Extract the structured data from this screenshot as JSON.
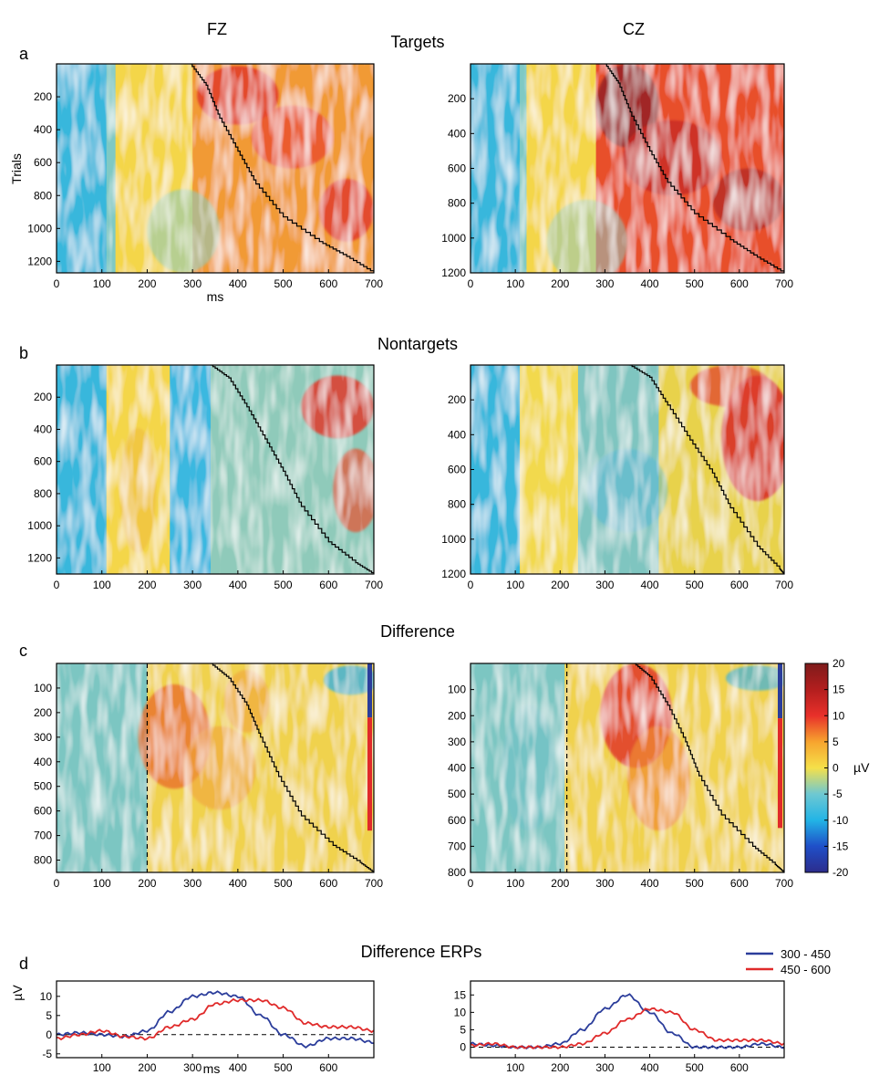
{
  "columns": [
    "FZ",
    "CZ"
  ],
  "colorbar": {
    "ticks": [
      20,
      15,
      10,
      5,
      0,
      -5,
      -10,
      -15,
      -20
    ],
    "unit": "µV",
    "colors": [
      "#2c2c8c",
      "#1f4fc8",
      "#22b4e6",
      "#6ec8d2",
      "#f5e04a",
      "#f7a42e",
      "#e8302a",
      "#b31e1e",
      "#7e1b1b"
    ]
  },
  "chart_data": [
    {
      "panel": "a",
      "section_title": "Targets",
      "electrode": "FZ",
      "type": "heatmap",
      "xlabel": "ms",
      "ylabel": "Trials",
      "xlim": [
        0,
        700
      ],
      "ylim": [
        0,
        1270
      ],
      "xticks": [
        0,
        100,
        200,
        300,
        400,
        500,
        600,
        700
      ],
      "yticks": [
        200,
        400,
        600,
        800,
        1000,
        1200
      ],
      "rt_curve": [
        [
          295,
          0
        ],
        [
          330,
          130
        ],
        [
          360,
          330
        ],
        [
          400,
          530
        ],
        [
          440,
          730
        ],
        [
          500,
          930
        ],
        [
          580,
          1080
        ],
        [
          640,
          1170
        ],
        [
          700,
          1270
        ]
      ]
    },
    {
      "panel": "a",
      "electrode": "CZ",
      "type": "heatmap",
      "xlim": [
        0,
        700
      ],
      "ylim": [
        0,
        1200
      ],
      "xticks": [
        0,
        100,
        200,
        300,
        400,
        500,
        600,
        700
      ],
      "yticks": [
        200,
        400,
        600,
        800,
        1000,
        1200
      ],
      "rt_curve": [
        [
          300,
          0
        ],
        [
          330,
          110
        ],
        [
          360,
          300
        ],
        [
          400,
          500
        ],
        [
          440,
          680
        ],
        [
          500,
          860
        ],
        [
          580,
          1010
        ],
        [
          640,
          1110
        ],
        [
          700,
          1200
        ]
      ]
    },
    {
      "panel": "b",
      "section_title": "Nontargets",
      "electrode": "FZ",
      "type": "heatmap",
      "xlim": [
        0,
        700
      ],
      "ylim": [
        0,
        1300
      ],
      "xticks": [
        0,
        100,
        200,
        300,
        400,
        500,
        600,
        700
      ],
      "yticks": [
        200,
        400,
        600,
        800,
        1000,
        1200
      ],
      "rt_curve": [
        [
          340,
          0
        ],
        [
          380,
          80
        ],
        [
          420,
          260
        ],
        [
          460,
          460
        ],
        [
          500,
          660
        ],
        [
          540,
          880
        ],
        [
          600,
          1100
        ],
        [
          660,
          1230
        ],
        [
          700,
          1300
        ]
      ]
    },
    {
      "panel": "b",
      "electrode": "CZ",
      "type": "heatmap",
      "xlim": [
        0,
        700
      ],
      "ylim": [
        0,
        1200
      ],
      "xticks": [
        0,
        100,
        200,
        300,
        400,
        500,
        600,
        700
      ],
      "yticks": [
        200,
        400,
        600,
        800,
        1000,
        1200
      ],
      "rt_curve": [
        [
          355,
          0
        ],
        [
          400,
          70
        ],
        [
          440,
          230
        ],
        [
          490,
          430
        ],
        [
          540,
          620
        ],
        [
          580,
          820
        ],
        [
          640,
          1040
        ],
        [
          690,
          1170
        ],
        [
          700,
          1200
        ]
      ]
    },
    {
      "panel": "c",
      "section_title": "Difference",
      "electrode": "FZ",
      "type": "heatmap",
      "xlim": [
        0,
        700
      ],
      "ylim": [
        0,
        850
      ],
      "xticks": [
        0,
        100,
        200,
        300,
        400,
        500,
        600,
        700
      ],
      "yticks": [
        100,
        200,
        300,
        400,
        500,
        600,
        700,
        800
      ],
      "vline": 200,
      "rt_curve": [
        [
          340,
          0
        ],
        [
          380,
          60
        ],
        [
          420,
          170
        ],
        [
          450,
          300
        ],
        [
          490,
          460
        ],
        [
          540,
          620
        ],
        [
          610,
          740
        ],
        [
          670,
          810
        ],
        [
          700,
          850
        ]
      ],
      "bars": [
        {
          "color": "#2b3d9b",
          "from": 0,
          "to": 220
        },
        {
          "color": "#e02a2a",
          "from": 220,
          "to": 680
        }
      ]
    },
    {
      "panel": "c",
      "electrode": "CZ",
      "type": "heatmap",
      "xlim": [
        0,
        700
      ],
      "ylim": [
        0,
        800
      ],
      "xticks": [
        0,
        100,
        200,
        300,
        400,
        500,
        600,
        700
      ],
      "yticks": [
        100,
        200,
        300,
        400,
        500,
        600,
        700,
        800
      ],
      "vline": 215,
      "rt_curve": [
        [
          365,
          0
        ],
        [
          400,
          50
        ],
        [
          440,
          160
        ],
        [
          480,
          300
        ],
        [
          510,
          430
        ],
        [
          560,
          580
        ],
        [
          630,
          700
        ],
        [
          680,
          770
        ],
        [
          700,
          800
        ]
      ],
      "bars": [
        {
          "color": "#2b3d9b",
          "from": 0,
          "to": 210
        },
        {
          "color": "#e02a2a",
          "from": 210,
          "to": 630
        }
      ]
    },
    {
      "panel": "d",
      "section_title": "Difference ERPs",
      "electrode": "FZ",
      "type": "line",
      "xlabel": "ms",
      "ylabel": "µV",
      "xlim": [
        0,
        700
      ],
      "ylim": [
        -6,
        14
      ],
      "xticks": [
        100,
        200,
        300,
        400,
        500,
        600
      ],
      "yticks": [
        10,
        5,
        0,
        -5
      ],
      "x": [
        0,
        50,
        100,
        150,
        200,
        250,
        300,
        350,
        400,
        450,
        500,
        550,
        600,
        650,
        700
      ],
      "series": [
        {
          "name": "300 - 450",
          "color": "#2b3d9b",
          "values": [
            0,
            0.5,
            0,
            -0.5,
            1,
            6,
            10,
            11,
            10,
            5,
            0,
            -3,
            -1,
            -1,
            -2
          ]
        },
        {
          "name": "450 - 600",
          "color": "#e02a2a",
          "values": [
            -1,
            0,
            1,
            -0.5,
            -1,
            2,
            4,
            8,
            9,
            9,
            7,
            3,
            2,
            2,
            1
          ]
        }
      ]
    },
    {
      "panel": "d",
      "electrode": "CZ",
      "type": "line",
      "xlim": [
        0,
        700
      ],
      "ylim": [
        -3,
        19
      ],
      "xticks": [
        100,
        200,
        300,
        400,
        500,
        600
      ],
      "yticks": [
        15,
        10,
        5,
        0
      ],
      "x": [
        0,
        50,
        100,
        150,
        200,
        250,
        300,
        350,
        400,
        450,
        500,
        550,
        600,
        650,
        700
      ],
      "series": [
        {
          "name": "300 - 450",
          "color": "#2b3d9b",
          "values": [
            1,
            0.5,
            0,
            0,
            1,
            5,
            11,
            15,
            10,
            4,
            0,
            0,
            0,
            1,
            0
          ]
        },
        {
          "name": "450 - 600",
          "color": "#e02a2a",
          "values": [
            0.5,
            1,
            0,
            0,
            0,
            1,
            4,
            8,
            11,
            10,
            5,
            2,
            2,
            2,
            1
          ]
        }
      ]
    }
  ]
}
